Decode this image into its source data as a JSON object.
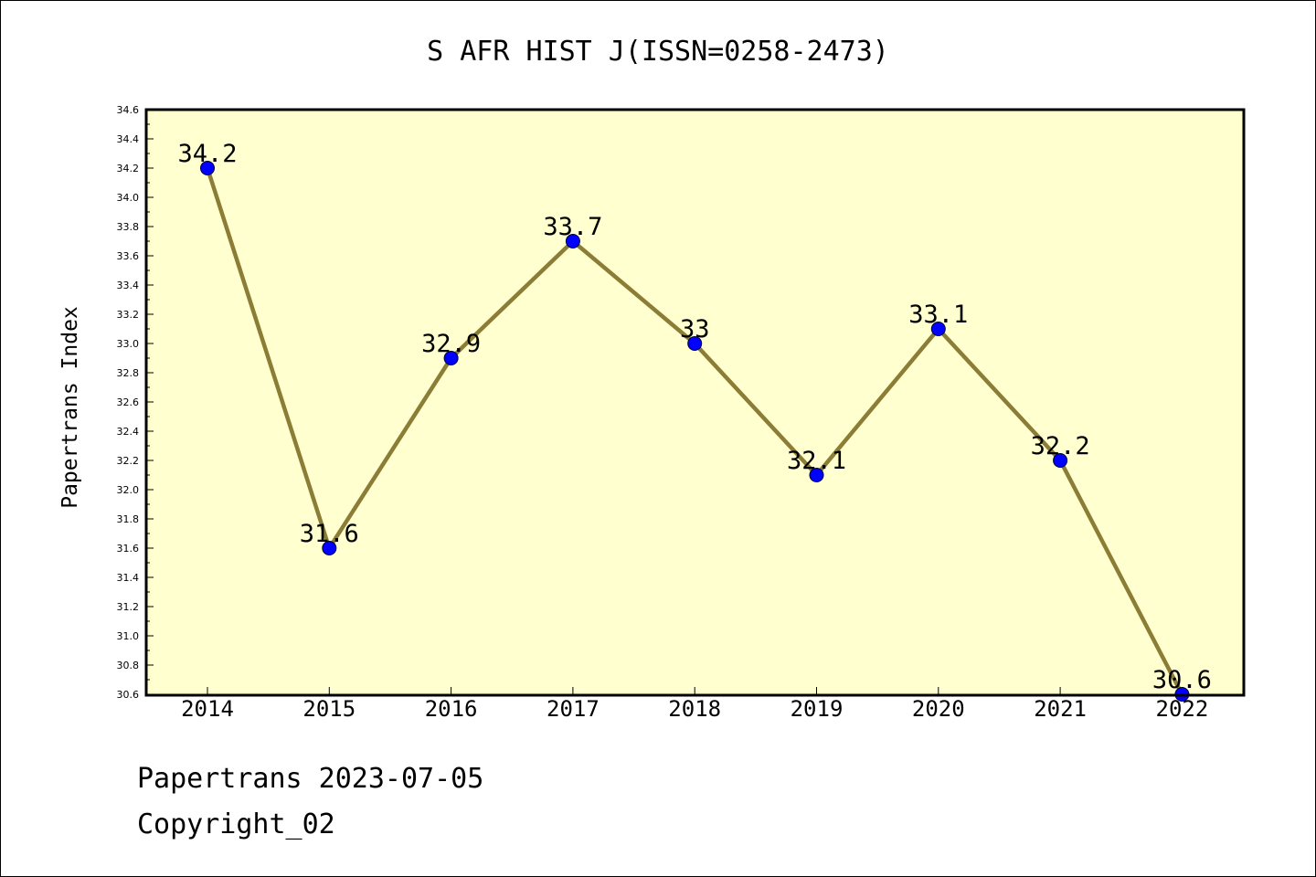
{
  "chart_data": {
    "type": "line",
    "title": "S AFR HIST J(ISSN=0258-2473)",
    "xlabel": "",
    "ylabel": "Papertrans Index",
    "categories": [
      "2014",
      "2015",
      "2016",
      "2017",
      "2018",
      "2019",
      "2020",
      "2021",
      "2022"
    ],
    "series": [
      {
        "values": [
          34.2,
          31.6,
          32.9,
          33.7,
          33.0,
          32.1,
          33.1,
          32.2,
          30.6
        ],
        "labels": [
          "34.2",
          "31.6",
          "32.9",
          "33.7",
          "33",
          "32.1",
          "33.1",
          "32.2",
          "30.6"
        ]
      }
    ],
    "ylim": [
      30.6,
      34.6
    ],
    "ytick_step": 0.2,
    "grid": false,
    "colors": {
      "plot_background": "#ffffd0",
      "line": "#8b7d35",
      "marker": "#0000ff",
      "axes": "#000000"
    }
  },
  "footer": {
    "date_line": "Papertrans 2023-07-05",
    "copyright": "Copyright_02"
  }
}
